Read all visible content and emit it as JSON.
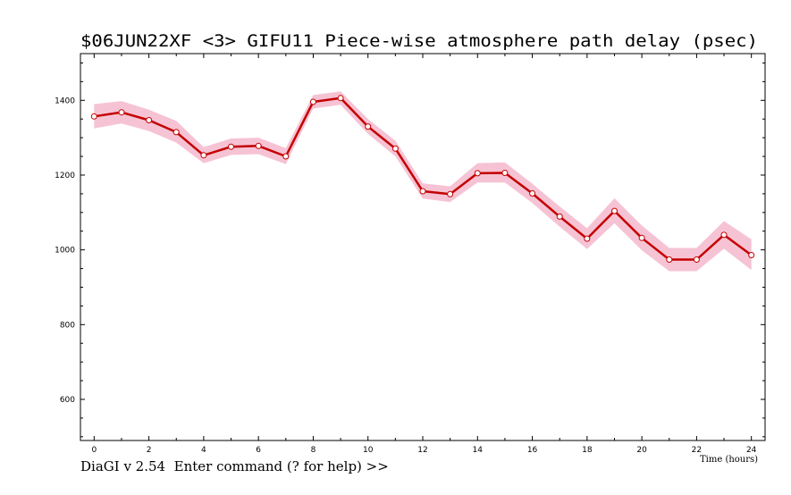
{
  "chart_data": {
    "type": "line",
    "title": "$06JUN22XF <3>  GIFU11    Piece-wise atmosphere path delay (psec)",
    "xlabel": "Time (hours)",
    "ylabel": "",
    "xlim": [
      -0.5,
      24.5
    ],
    "ylim": [
      490,
      1525
    ],
    "x_ticks": [
      0,
      2,
      4,
      6,
      8,
      10,
      12,
      14,
      16,
      18,
      20,
      22,
      24
    ],
    "x_tick_labels": [
      "0",
      "2",
      "4",
      "6",
      "8",
      "10",
      "12",
      "14",
      "16",
      "18",
      "20",
      "22",
      "24"
    ],
    "y_ticks": [
      600,
      800,
      1000,
      1200,
      1400
    ],
    "y_tick_labels": [
      "600",
      "800",
      "1000",
      "1200",
      "1400"
    ],
    "grid": false,
    "x": [
      0,
      1,
      2,
      3,
      4,
      5,
      6,
      7,
      8,
      9,
      10,
      11,
      12,
      13,
      14,
      15,
      16,
      17,
      18,
      19,
      20,
      21,
      22,
      23,
      24
    ],
    "series": [
      {
        "values": [
          1357,
          1368,
          1347,
          1315,
          1253,
          1276,
          1278,
          1250,
          1396,
          1406,
          1330,
          1271,
          1157,
          1149,
          1205,
          1206,
          1151,
          1089,
          1030,
          1104,
          1032,
          974,
          974,
          1040,
          986
        ],
        "upper": [
          1390,
          1398,
          1375,
          1345,
          1275,
          1298,
          1300,
          1272,
          1414,
          1424,
          1350,
          1292,
          1178,
          1170,
          1232,
          1234,
          1177,
          1116,
          1058,
          1138,
          1065,
          1005,
          1005,
          1077,
          1028
        ],
        "lower": [
          1325,
          1338,
          1318,
          1287,
          1232,
          1254,
          1256,
          1229,
          1378,
          1388,
          1310,
          1250,
          1137,
          1128,
          1180,
          1180,
          1125,
          1062,
          1002,
          1071,
          999,
          943,
          943,
          1003,
          946
        ],
        "color": "#c40000",
        "band_color": "#f5b8cc"
      }
    ]
  },
  "command_prompt": "DiaGI v 2.54  Enter command (? for help) >>"
}
